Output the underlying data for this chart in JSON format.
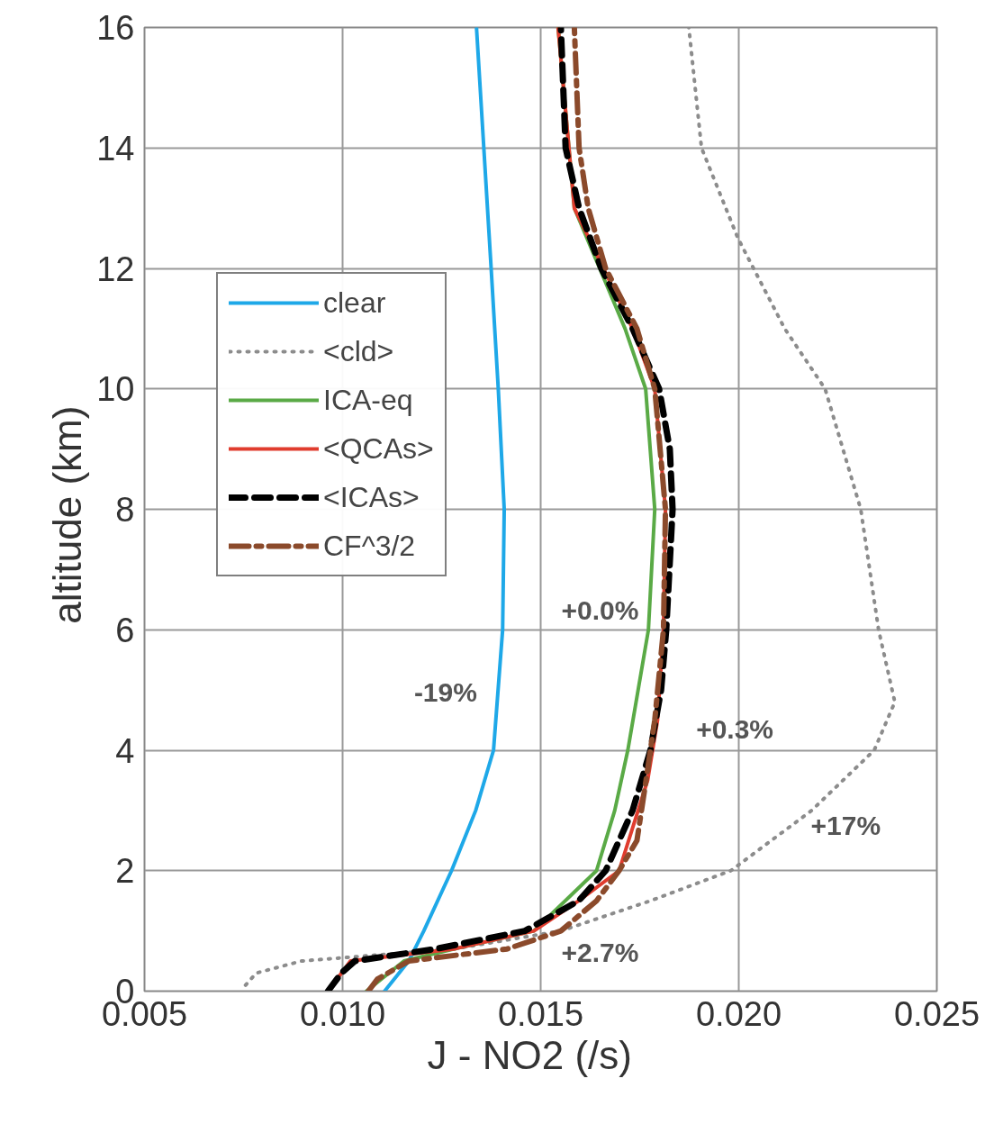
{
  "chart_data": {
    "type": "line",
    "xlabel": "J - NO2   (/s)",
    "ylabel": "altitude  (km)",
    "xlim": [
      0.005,
      0.025
    ],
    "ylim": [
      0,
      16
    ],
    "xticks": [
      {
        "value": 0.005,
        "label": "0.005"
      },
      {
        "value": 0.01,
        "label": "0.010"
      },
      {
        "value": 0.015,
        "label": "0.015"
      },
      {
        "value": 0.02,
        "label": "0.020"
      },
      {
        "value": 0.025,
        "label": "0.025"
      }
    ],
    "yticks": [
      0,
      2,
      4,
      6,
      8,
      10,
      12,
      14,
      16
    ],
    "grid": true,
    "legend": "top left",
    "marker": "none",
    "series": [
      {
        "name": "clear",
        "color": "#1ea8e8",
        "line_style": "solid",
        "x": [
          0.01106,
          0.01167,
          0.01205,
          0.01275,
          0.01336,
          0.01381,
          0.01404,
          0.01408,
          0.01393,
          0.01375,
          0.01338
        ],
        "values": [
          0,
          0.5,
          1,
          2,
          3,
          4,
          6,
          8,
          10,
          12,
          16
        ]
      },
      {
        "name": "<cld>",
        "color": "#8c8c8c",
        "line_style": "dotted",
        "x": [
          0.00755,
          0.00782,
          0.00896,
          0.0128,
          0.01551,
          0.01777,
          0.0198,
          0.02184,
          0.02342,
          0.02394,
          0.02353,
          0.02308,
          0.02218,
          0.02116,
          0.01998,
          0.01906,
          0.01874
        ],
        "values": [
          0.1,
          0.3,
          0.5,
          0.7,
          1,
          1.5,
          2,
          3,
          4,
          4.8,
          6,
          8,
          10,
          11,
          12.5,
          14,
          16
        ]
      },
      {
        "name": "ICA-eq",
        "color": "#5aaa46",
        "line_style": "solid",
        "x": [
          0.0106,
          0.01155,
          0.0128,
          0.01483,
          0.01641,
          0.01687,
          0.0172,
          0.01772,
          0.01788,
          0.01765,
          0.01713,
          0.01585,
          0.01544
        ],
        "values": [
          0,
          0.5,
          0.7,
          1,
          2,
          3,
          4,
          6,
          8,
          10,
          11,
          13,
          16
        ]
      },
      {
        "name": "<QCAs>",
        "color": "#e03c2e",
        "line_style": "solid",
        "x": [
          0.00963,
          0.00997,
          0.0102,
          0.0128,
          0.01483,
          0.01596,
          0.01698,
          0.0177,
          0.01795,
          0.0181,
          0.01815,
          0.01788,
          0.01732,
          0.01585,
          0.01544
        ],
        "values": [
          0,
          0.3,
          0.5,
          0.7,
          1,
          1.5,
          2,
          3.5,
          4.5,
          6,
          8,
          10,
          11,
          13,
          16
        ]
      },
      {
        "name": "<ICAs>",
        "color": "#000000",
        "line_style": "dashed",
        "x": [
          0.00963,
          0.00997,
          0.01031,
          0.01234,
          0.0146,
          0.01596,
          0.01664,
          0.01732,
          0.01777,
          0.01804,
          0.01817,
          0.01833,
          0.01826,
          0.01799,
          0.01732,
          0.01653,
          0.01597,
          0.01563,
          0.01551
        ],
        "values": [
          0,
          0.3,
          0.5,
          0.7,
          1,
          1.5,
          2,
          3,
          4,
          5,
          6,
          8,
          9,
          10,
          11,
          12,
          13,
          14,
          16
        ]
      },
      {
        "name": "CF^3/2",
        "color": "#8b4a2b",
        "line_style": "dashdot",
        "x": [
          0.01065,
          0.01088,
          0.01167,
          0.01415,
          0.01551,
          0.01641,
          0.01698,
          0.01743,
          0.01766,
          0.01788,
          0.0181,
          0.01815,
          0.01788,
          0.01743,
          0.01664,
          0.0162,
          0.01597,
          0.01585
        ],
        "values": [
          0,
          0.2,
          0.5,
          0.7,
          1,
          1.5,
          2,
          2.5,
          3.5,
          4.5,
          6,
          8,
          10,
          11,
          12,
          13,
          14,
          16
        ]
      }
    ],
    "annotations": [
      "-19%",
      "+0.0%",
      "+0.3%",
      "+17%",
      "+2.7%"
    ]
  }
}
